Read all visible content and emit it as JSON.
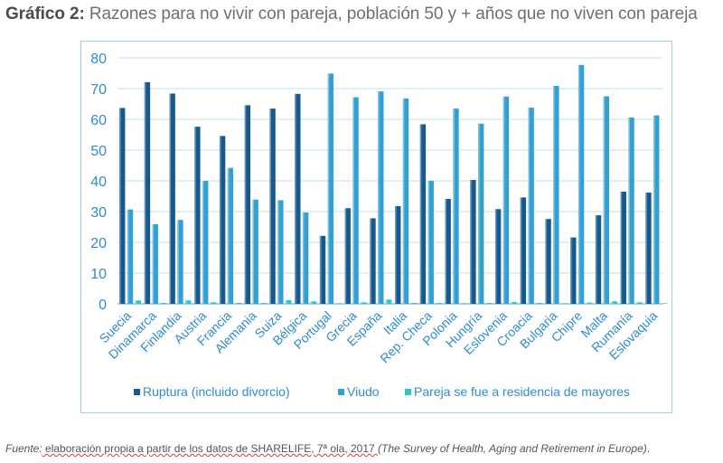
{
  "title": {
    "prefix": "Gráfico 2:",
    "text": " Razones para no vivir con pareja, población 50 y + años que no viven con pareja"
  },
  "source": {
    "label": "Fuente:",
    "part1": " elaboración propia a partir de los datos de SHARELIFE, 7ª ola, 2017 ",
    "italic": "(The Survey of Health, Aging and Retirement in Europe)",
    "end": "."
  },
  "chart_data": {
    "type": "bar",
    "title": "",
    "xlabel": "",
    "ylabel": "",
    "ylim": [
      0,
      80
    ],
    "yticks": [
      "0",
      "10",
      "20",
      "30",
      "40",
      "50",
      "60",
      "70",
      "80"
    ],
    "grid": true,
    "legend_position": "bottom",
    "categories": [
      "Suecia",
      "Dinamarca",
      "Finlandia",
      "Austria",
      "Francia",
      "Alemania",
      "Suiza",
      "Bélgica",
      "Portugal",
      "Grecia",
      "España",
      "Italia",
      "Rep. Checa",
      "Polonia",
      "Hungría",
      "Eslovenia",
      "Croacia",
      "Bulgaria",
      "Chipre",
      "Malta",
      "Rumanía",
      "Eslovaquia"
    ],
    "series": [
      {
        "name": "Ruptura (incluido divorcio)",
        "color": "#15598f",
        "values": [
          63.7,
          72.1,
          68.4,
          57.6,
          54.6,
          64.6,
          63.5,
          68.3,
          22.1,
          31.1,
          27.8,
          31.8,
          58.4,
          34.1,
          40.3,
          30.8,
          34.6,
          27.6,
          21.6,
          28.8,
          36.5,
          36.2
        ]
      },
      {
        "name": "Viudo",
        "color": "#33a0d3",
        "values": [
          30.7,
          25.9,
          27.3,
          40.0,
          44.2,
          33.9,
          33.7,
          29.7,
          74.9,
          67.2,
          69.1,
          66.8,
          40.0,
          63.5,
          58.6,
          67.4,
          63.8,
          70.9,
          77.7,
          67.5,
          60.6,
          61.3
        ]
      },
      {
        "name": "Pareja se fue a residencia de mayores",
        "color": "#2fc4c8",
        "values": [
          1.1,
          0.3,
          1.1,
          0.5,
          0.3,
          0.3,
          1.2,
          0.8,
          0.2,
          0.5,
          1.4,
          0.3,
          0.3,
          0.2,
          0.3,
          0.6,
          0.3,
          0.2,
          0.4,
          0.8,
          0.5,
          0.2
        ]
      }
    ]
  }
}
